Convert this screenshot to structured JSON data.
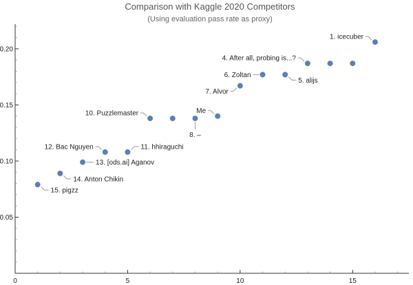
{
  "chart_data": {
    "type": "scatter",
    "title": "Comparison with Kaggle 2020 Competitors",
    "subtitle": "(Using evaluation pass rate as proxy)",
    "xlabel": "",
    "ylabel": "",
    "xlim": [
      0,
      17.5
    ],
    "ylim": [
      0,
      0.222
    ],
    "x_ticks": [
      0,
      5,
      10,
      15
    ],
    "y_ticks": [
      0.05,
      0.1,
      0.15,
      0.2
    ],
    "x_tick_labels": [
      "0",
      "5",
      "10",
      "15"
    ],
    "y_tick_labels": [
      "0.05",
      "0.10",
      "0.15",
      "0.20"
    ],
    "grid": false,
    "point_color": "#5d7fb5",
    "highlight_color": "#e8202a",
    "points": [
      {
        "x": 1,
        "y": 0.079,
        "label": "15. pigzz"
      },
      {
        "x": 2,
        "y": 0.089,
        "label": "14. Anton Chikin"
      },
      {
        "x": 3,
        "y": 0.099,
        "label": "13. [ods.ai] Aganov"
      },
      {
        "x": 4,
        "y": 0.108,
        "label": "12. Bac Nguyen"
      },
      {
        "x": 5,
        "y": 0.108,
        "label": "11. hhiraguchi"
      },
      {
        "x": 6,
        "y": 0.138,
        "label": "10. Puzzlemaster"
      },
      {
        "x": 7,
        "y": 0.138,
        "label": ""
      },
      {
        "x": 8,
        "y": 0.138,
        "label": "8. –"
      },
      {
        "x": 9,
        "y": 0.14,
        "label": "Me",
        "highlight": true
      },
      {
        "x": 10,
        "y": 0.167,
        "label": "7. Alvor"
      },
      {
        "x": 11,
        "y": 0.177,
        "label": "6. Zoltan"
      },
      {
        "x": 12,
        "y": 0.177,
        "label": "5. alijs"
      },
      {
        "x": 13,
        "y": 0.187,
        "label": "4. After all, probing is...?"
      },
      {
        "x": 14,
        "y": 0.187,
        "label": ""
      },
      {
        "x": 15,
        "y": 0.187,
        "label": ""
      },
      {
        "x": 16,
        "y": 0.206,
        "label": "1. icecuber"
      }
    ]
  }
}
